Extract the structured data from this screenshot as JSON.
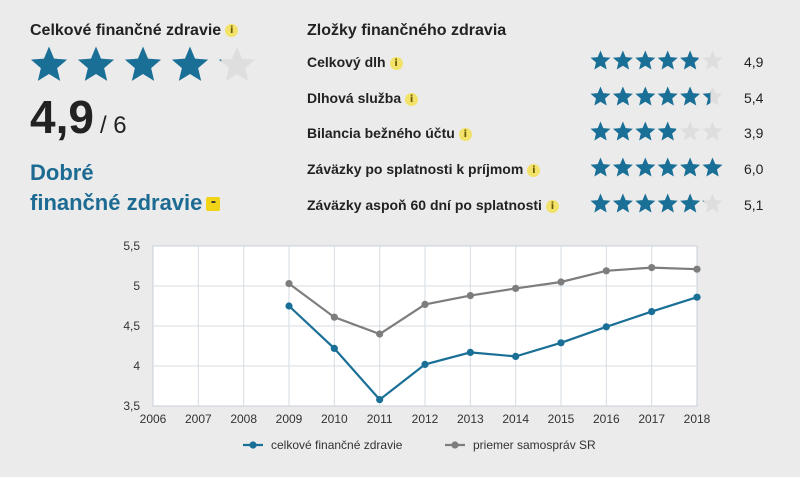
{
  "overall": {
    "title": "Celkové finančné zdravie",
    "info_icon": "i",
    "stars_total": 5,
    "stars_fraction": 0.817,
    "score": "4,9",
    "score_max": "/ 6",
    "rating_line1": "Dobré",
    "rating_line2": "finančné zdravie",
    "rating_icon": "-"
  },
  "components": {
    "title": "Zložky finančného zdravia",
    "info_icon": "i",
    "stars_total": 6,
    "items": [
      {
        "label": "Celkový dlh",
        "value": "4,9",
        "score": 4.9
      },
      {
        "label": "Dlhová služba",
        "value": "5,4",
        "score": 5.4
      },
      {
        "label": "Bilancia bežného účtu",
        "value": "3,9",
        "score": 3.9
      },
      {
        "label": "Záväzky po splatnosti k príjmom",
        "value": "6,0",
        "score": 6.0
      },
      {
        "label": "Záväzky aspoň 60 dní po splatnosti",
        "value": "5,1",
        "score": 5.1
      }
    ]
  },
  "colors": {
    "star_fill": "#1a6f96",
    "star_empty": "#dedede",
    "series_main": "#1a6f96",
    "series_avg": "#7d7d7d",
    "rating_text": "#1d6b93"
  },
  "chart_data": {
    "type": "line",
    "x": [
      "2006",
      "2007",
      "2008",
      "2009",
      "2010",
      "2011",
      "2012",
      "2013",
      "2014",
      "2015",
      "2016",
      "2017",
      "2018"
    ],
    "y_ticks": [
      "5,5",
      "5",
      "4,5",
      "4",
      "3,5"
    ],
    "y_tick_values": [
      5.5,
      5.0,
      4.5,
      4.0,
      3.5
    ],
    "ylim": [
      3.5,
      5.5
    ],
    "grid": true,
    "legend_position": "bottom",
    "series": [
      {
        "name": "celkové finančné zdravie",
        "color": "#1a6f96",
        "values": [
          null,
          null,
          null,
          4.75,
          4.22,
          3.58,
          4.02,
          4.17,
          4.12,
          4.29,
          4.49,
          4.68,
          4.86
        ]
      },
      {
        "name": "priemer samospráv SR",
        "color": "#7d7d7d",
        "values": [
          null,
          null,
          null,
          5.03,
          4.61,
          4.4,
          4.77,
          4.88,
          4.97,
          5.05,
          5.19,
          5.23,
          5.21
        ]
      }
    ]
  }
}
